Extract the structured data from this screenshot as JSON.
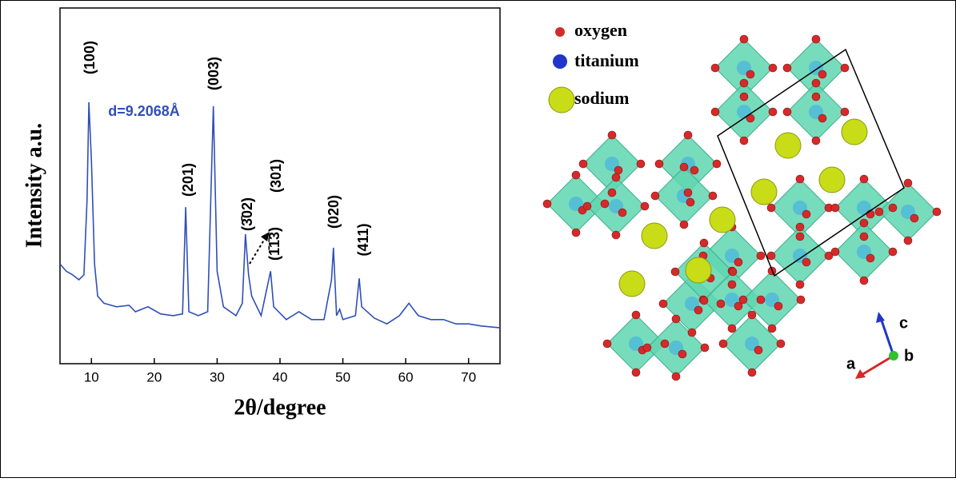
{
  "chart_data": {
    "type": "line",
    "x_label": "2θ/degree",
    "y_label": "Intensity a.u.",
    "x": [
      5,
      6,
      7,
      8,
      8.8,
      9.3,
      9.6,
      10,
      10.5,
      11,
      12,
      14,
      16,
      17,
      19,
      21,
      23,
      24.5,
      25,
      25.5,
      27,
      28.5,
      29.4,
      30,
      31,
      33,
      34,
      34.5,
      35,
      35.5,
      37,
      38.5,
      39,
      41,
      43,
      45,
      47,
      48.2,
      48.5,
      49,
      49.5,
      50,
      52,
      52.6,
      53,
      55,
      57,
      59,
      60.5,
      62,
      64,
      66,
      68,
      70,
      72,
      75
    ],
    "series": [
      {
        "color": "#2f4fb8",
        "values": [
          28,
          26,
          25,
          23.6,
          25,
          46,
          73.5,
          57,
          28,
          19,
          17,
          16,
          16.4,
          14.6,
          16,
          14,
          13.5,
          14,
          44,
          14.6,
          13.5,
          14.6,
          72.4,
          26,
          16,
          13.5,
          17,
          36.4,
          25,
          19,
          13.5,
          26,
          16,
          12.4,
          14.6,
          12.4,
          12.4,
          23.6,
          32.6,
          13.5,
          15.3,
          12.4,
          13.5,
          24,
          16,
          12.8,
          11.2,
          13.5,
          17,
          13.5,
          12.4,
          12.4,
          11.2,
          11.2,
          10.6,
          10.1
        ]
      }
    ],
    "xlim": [
      5,
      75
    ],
    "xticks": [
      10,
      20,
      30,
      40,
      50,
      60,
      70
    ],
    "ylim": [
      0,
      100
    ],
    "annotations": [
      "(100)",
      "(003)",
      "(201)",
      "(3̄02)",
      "(301)",
      "(1̄1̄3)",
      "(020)",
      "(411)",
      "d=9.2068Å"
    ]
  },
  "structure": {
    "legend": [
      "oxygen",
      "titanium",
      "sodium"
    ],
    "axes": [
      "c",
      "b",
      "a"
    ]
  }
}
